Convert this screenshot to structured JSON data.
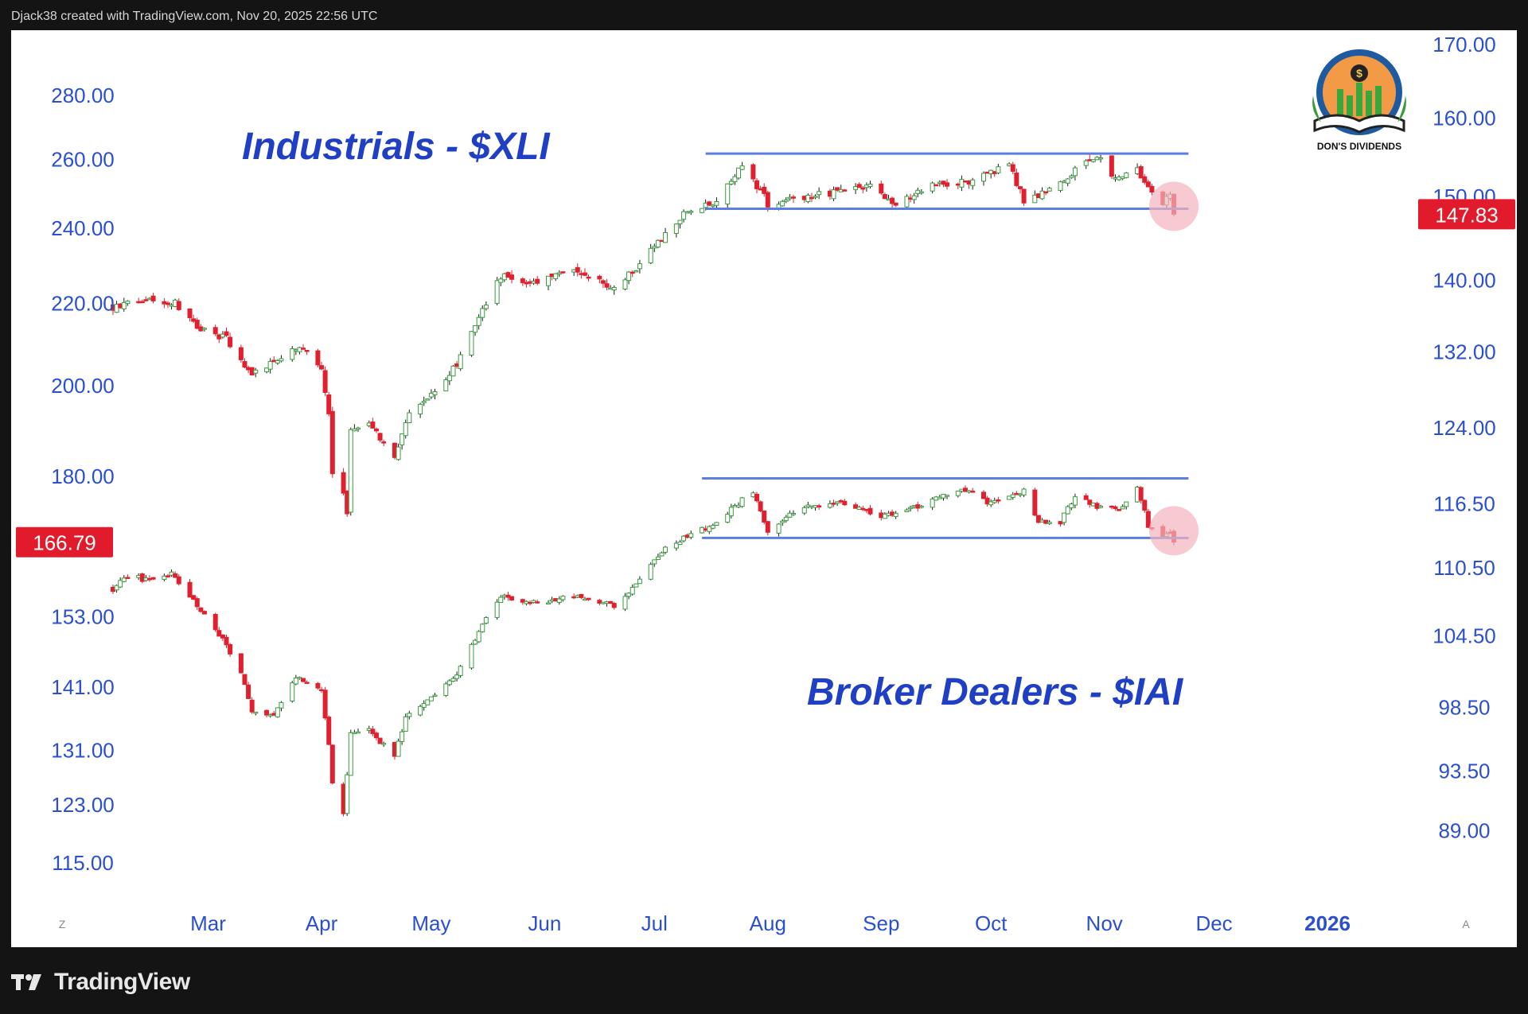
{
  "header": {
    "credit": "Djack38 created with TradingView.com, Nov 20, 2025 22:56 UTC"
  },
  "footer": {
    "brand": "TradingView"
  },
  "logo": {
    "text": "DON'S DIVIDENDS"
  },
  "colors": {
    "up": "#3a9a3e",
    "down": "#e0202e",
    "axis_text": "#2a4fd0",
    "title": "#1f3fc4",
    "channel": "#5b7fe0",
    "price_tag": "#e21b2c",
    "highlight": "#f3b3bd"
  },
  "xaxis": {
    "labels": [
      "Mar",
      "Apr",
      "May",
      "Jun",
      "Jul",
      "Aug",
      "Sep",
      "Oct",
      "Nov",
      "Dec",
      "2026"
    ],
    "date_positions": [
      "2025-03-01",
      "2025-04-01",
      "2025-05-01",
      "2025-06-01",
      "2025-07-01",
      "2025-08-01",
      "2025-09-01",
      "2025-10-01",
      "2025-11-01",
      "2025-12-01",
      "2026-01-01"
    ],
    "start": "2025-02-03",
    "end": "2026-01-21",
    "corner_left": "Z",
    "corner_right": "A"
  },
  "chart_data": [
    {
      "type": "candlestick",
      "name": "Industrials - $XLI",
      "title": "Industrials - $XLI",
      "scale": "log",
      "axis_side": "right",
      "ylim": [
        84,
        172
      ],
      "ticks": [
        "170.00",
        "160.00",
        "150.00",
        "140.00",
        "132.00",
        "124.00",
        "116.50",
        "110.50",
        "104.50",
        "98.50",
        "93.50",
        "89.00"
      ],
      "tick_values": [
        170,
        160,
        150,
        140,
        132,
        124,
        116.5,
        110.5,
        104.5,
        98.5,
        93.5,
        89
      ],
      "last_price": "147.83",
      "last_value": 147.83,
      "channel": {
        "upper": 155.4,
        "lower": 148.5,
        "start": "2025-07-15",
        "end": "2025-11-24"
      },
      "highlight": {
        "date": "2025-11-20",
        "value": 148.8
      },
      "anchors": [
        [
          "2025-02-03",
          137.0
        ],
        [
          "2025-02-12",
          137.8
        ],
        [
          "2025-02-20",
          137.5
        ],
        [
          "2025-02-27",
          134.5
        ],
        [
          "2025-03-06",
          133.4
        ],
        [
          "2025-03-11",
          130.2
        ],
        [
          "2025-03-13",
          129.5
        ],
        [
          "2025-03-20",
          131.0
        ],
        [
          "2025-03-26",
          132.6
        ],
        [
          "2025-04-01",
          130.5
        ],
        [
          "2025-04-03",
          125.5
        ],
        [
          "2025-04-04",
          119.5
        ],
        [
          "2025-04-07",
          117.2
        ],
        [
          "2025-04-08",
          115.8
        ],
        [
          "2025-04-09",
          124.0
        ],
        [
          "2025-04-14",
          124.5
        ],
        [
          "2025-04-21",
          120.8
        ],
        [
          "2025-04-24",
          124.8
        ],
        [
          "2025-05-01",
          127.5
        ],
        [
          "2025-05-08",
          130.5
        ],
        [
          "2025-05-12",
          134.5
        ],
        [
          "2025-05-20",
          140.5
        ],
        [
          "2025-05-30",
          139.8
        ],
        [
          "2025-06-10",
          141.2
        ],
        [
          "2025-06-20",
          139.2
        ],
        [
          "2025-06-26",
          141.3
        ],
        [
          "2025-07-03",
          145.0
        ],
        [
          "2025-07-11",
          148.6
        ],
        [
          "2025-07-17",
          149.2
        ],
        [
          "2025-07-25",
          153.8
        ],
        [
          "2025-07-31",
          150.0
        ],
        [
          "2025-08-01",
          148.3
        ],
        [
          "2025-08-05",
          149.5
        ],
        [
          "2025-08-15",
          150.2
        ],
        [
          "2025-08-29",
          151.2
        ],
        [
          "2025-09-05",
          149.0
        ],
        [
          "2025-09-15",
          151.3
        ],
        [
          "2025-09-26",
          152.0
        ],
        [
          "2025-10-06",
          154.0
        ],
        [
          "2025-10-10",
          149.5
        ],
        [
          "2025-10-20",
          151.4
        ],
        [
          "2025-10-27",
          154.8
        ],
        [
          "2025-10-31",
          154.4
        ],
        [
          "2025-11-04",
          152.5
        ],
        [
          "2025-11-10",
          153.4
        ],
        [
          "2025-11-13",
          151.0
        ],
        [
          "2025-11-17",
          149.2
        ],
        [
          "2025-11-19",
          150.0
        ],
        [
          "2025-11-20",
          147.8
        ]
      ]
    },
    {
      "type": "candlestick",
      "name": "Broker Dealers - $IAI",
      "title": "Broker Dealers - $IAI",
      "scale": "log",
      "axis_side": "left",
      "ylim": [
        110,
        302
      ],
      "ticks": [
        "280.00",
        "260.00",
        "240.00",
        "220.00",
        "200.00",
        "180.00",
        "153.00",
        "141.00",
        "131.00",
        "123.00",
        "115.00"
      ],
      "tick_values": [
        280,
        260,
        240,
        220,
        200,
        180,
        153,
        141,
        131,
        123,
        115
      ],
      "last_price": "166.79",
      "last_value": 166.79,
      "channel": {
        "upper": 179.6,
        "lower": 167.6,
        "start": "2025-07-14",
        "end": "2025-11-24"
      },
      "highlight": {
        "date": "2025-11-20",
        "value": 169.0
      },
      "anchors": [
        [
          "2025-02-03",
          158.0
        ],
        [
          "2025-02-07",
          160.5
        ],
        [
          "2025-02-13",
          159.5
        ],
        [
          "2025-02-19",
          160.8
        ],
        [
          "2025-02-26",
          155.0
        ],
        [
          "2025-03-04",
          150.0
        ],
        [
          "2025-03-10",
          143.0
        ],
        [
          "2025-03-13",
          137.0
        ],
        [
          "2025-03-19",
          136.5
        ],
        [
          "2025-03-25",
          142.5
        ],
        [
          "2025-04-01",
          140.5
        ],
        [
          "2025-04-03",
          132.0
        ],
        [
          "2025-04-04",
          126.5
        ],
        [
          "2025-04-07",
          121.5
        ],
        [
          "2025-04-09",
          133.5
        ],
        [
          "2025-04-14",
          134.2
        ],
        [
          "2025-04-21",
          130.0
        ],
        [
          "2025-04-24",
          136.2
        ],
        [
          "2025-05-01",
          139.5
        ],
        [
          "2025-05-08",
          143.0
        ],
        [
          "2025-05-12",
          148.0
        ],
        [
          "2025-05-20",
          156.8
        ],
        [
          "2025-05-30",
          155.5
        ],
        [
          "2025-06-10",
          156.6
        ],
        [
          "2025-06-20",
          155.0
        ],
        [
          "2025-06-26",
          159.0
        ],
        [
          "2025-07-03",
          165.0
        ],
        [
          "2025-07-11",
          168.3
        ],
        [
          "2025-07-17",
          170.0
        ],
        [
          "2025-07-28",
          177.0
        ],
        [
          "2025-08-01",
          169.2
        ],
        [
          "2025-08-11",
          174.0
        ],
        [
          "2025-08-22",
          174.5
        ],
        [
          "2025-09-01",
          172.0
        ],
        [
          "2025-09-12",
          174.0
        ],
        [
          "2025-09-23",
          177.8
        ],
        [
          "2025-10-01",
          174.4
        ],
        [
          "2025-10-10",
          177.0
        ],
        [
          "2025-10-14",
          171.0
        ],
        [
          "2025-10-20",
          170.6
        ],
        [
          "2025-10-24",
          176.2
        ],
        [
          "2025-10-30",
          173.8
        ],
        [
          "2025-11-05",
          173.2
        ],
        [
          "2025-11-10",
          178.2
        ],
        [
          "2025-11-13",
          170.0
        ],
        [
          "2025-11-17",
          167.5
        ],
        [
          "2025-11-19",
          169.0
        ],
        [
          "2025-11-20",
          166.8
        ]
      ]
    }
  ]
}
